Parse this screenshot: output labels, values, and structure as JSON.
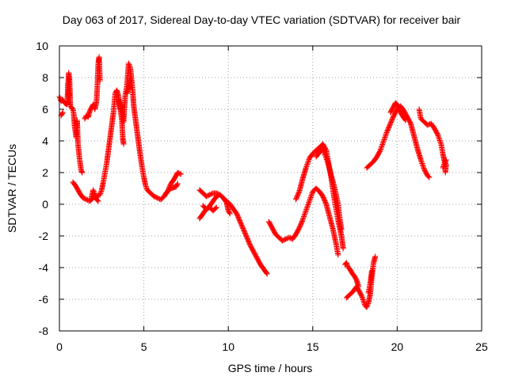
{
  "chart_data": {
    "type": "scatter",
    "title": "Day 063 of 2017, Sidereal Day-to-day VTEC variation (SDTVAR) for receiver bair",
    "xlabel": "GPS time / hours",
    "ylabel": "SDTVAR / TECUs",
    "xlim": [
      0,
      25
    ],
    "ylim": [
      -8,
      10
    ],
    "xticks": [
      0,
      5,
      10,
      15,
      20,
      25
    ],
    "yticks": [
      -8,
      -6,
      -4,
      -2,
      0,
      2,
      4,
      6,
      8,
      10
    ],
    "xtick_labels": [
      "0",
      "5",
      "10",
      "15",
      "20",
      "25"
    ],
    "ytick_labels": [
      "-8",
      "-6",
      "-4",
      "-2",
      "0",
      "2",
      "4",
      "6",
      "8",
      "10"
    ],
    "grid": true,
    "marker": "+",
    "series": [
      {
        "name": "SDTVAR",
        "color": "#ff0000",
        "segments": [
          [
            [
              0.0,
              6.8
            ],
            [
              0.1,
              6.5
            ],
            [
              0.2,
              6.6
            ],
            [
              0.3,
              6.4
            ],
            [
              0.45,
              6.3
            ],
            [
              0.55,
              8.3
            ],
            [
              0.6,
              7.8
            ],
            [
              0.65,
              6.2
            ],
            [
              0.8,
              6.0
            ],
            [
              0.85,
              5.7
            ],
            [
              0.9,
              4.9
            ],
            [
              1.0,
              4.2
            ],
            [
              1.05,
              5.3
            ],
            [
              1.1,
              3.8
            ],
            [
              1.2,
              2.8
            ],
            [
              1.3,
              2.1
            ],
            [
              1.35,
              2.0
            ]
          ],
          [
            [
              0.1,
              5.6
            ],
            [
              0.2,
              5.8
            ]
          ],
          [
            [
              0.5,
              7.6
            ],
            [
              0.55,
              6.8
            ],
            [
              0.6,
              7.0
            ]
          ],
          [
            [
              0.8,
              1.4
            ],
            [
              1.0,
              1.1
            ],
            [
              1.2,
              0.7
            ],
            [
              1.4,
              0.4
            ],
            [
              1.6,
              0.3
            ],
            [
              1.8,
              0.2
            ],
            [
              2.0,
              0.4
            ],
            [
              2.2,
              0.5
            ],
            [
              2.4,
              0.6
            ],
            [
              2.5,
              0.9
            ],
            [
              2.6,
              1.4
            ],
            [
              2.7,
              2.0
            ],
            [
              2.8,
              2.6
            ],
            [
              2.9,
              3.4
            ],
            [
              3.0,
              4.2
            ],
            [
              3.1,
              5.0
            ],
            [
              3.2,
              5.8
            ],
            [
              3.3,
              7.0
            ],
            [
              3.4,
              7.2
            ],
            [
              3.5,
              6.8
            ],
            [
              3.6,
              6.1
            ],
            [
              3.7,
              5.3
            ],
            [
              3.75,
              4.2
            ],
            [
              3.8,
              3.8
            ]
          ],
          [
            [
              1.5,
              5.4
            ],
            [
              1.6,
              5.6
            ],
            [
              1.7,
              5.5
            ],
            [
              1.8,
              5.9
            ],
            [
              1.9,
              6.1
            ],
            [
              2.0,
              6.3
            ],
            [
              2.1,
              6.0
            ],
            [
              2.2,
              6.5
            ],
            [
              2.25,
              7.5
            ],
            [
              2.3,
              8.9
            ],
            [
              2.35,
              9.3
            ],
            [
              2.4,
              7.8
            ]
          ],
          [
            [
              1.9,
              0.4
            ],
            [
              2.0,
              0.9
            ],
            [
              2.1,
              0.6
            ],
            [
              2.2,
              0.3
            ],
            [
              2.3,
              0.2
            ]
          ],
          [
            [
              3.5,
              6.6
            ],
            [
              3.6,
              6.0
            ],
            [
              3.7,
              6.3
            ],
            [
              3.8,
              5.2
            ],
            [
              3.9,
              6.9
            ],
            [
              4.0,
              7.5
            ],
            [
              4.1,
              8.9
            ],
            [
              4.2,
              8.6
            ],
            [
              4.3,
              7.6
            ],
            [
              4.35,
              7.0
            ],
            [
              4.4,
              6.2
            ],
            [
              4.5,
              5.4
            ],
            [
              4.6,
              4.6
            ],
            [
              4.7,
              3.8
            ],
            [
              4.8,
              3.0
            ],
            [
              4.9,
              2.3
            ],
            [
              5.0,
              1.7
            ],
            [
              5.1,
              1.2
            ],
            [
              5.2,
              0.9
            ],
            [
              5.4,
              0.7
            ],
            [
              5.6,
              0.5
            ],
            [
              5.8,
              0.4
            ],
            [
              6.0,
              0.3
            ],
            [
              6.2,
              0.5
            ],
            [
              6.4,
              0.8
            ],
            [
              6.6,
              1.3
            ],
            [
              6.8,
              1.6
            ],
            [
              7.0,
              2.0
            ],
            [
              7.2,
              1.9
            ]
          ],
          [
            [
              4.0,
              7.0
            ],
            [
              4.1,
              7.4
            ],
            [
              4.2,
              7.9
            ],
            [
              4.3,
              7.3
            ]
          ],
          [
            [
              6.3,
              0.7
            ],
            [
              6.6,
              1.0
            ],
            [
              6.9,
              1.1
            ],
            [
              7.0,
              1.3
            ]
          ],
          [
            [
              8.3,
              -0.9
            ],
            [
              8.5,
              -0.6
            ],
            [
              8.7,
              -0.3
            ],
            [
              8.9,
              -0.1
            ],
            [
              9.1,
              0.2
            ],
            [
              9.3,
              0.5
            ],
            [
              9.5,
              0.6
            ],
            [
              9.7,
              0.4
            ],
            [
              9.9,
              0.2
            ],
            [
              10.1,
              0.0
            ],
            [
              10.3,
              -0.3
            ],
            [
              10.5,
              -0.6
            ],
            [
              10.7,
              -1.1
            ],
            [
              10.9,
              -1.6
            ],
            [
              11.1,
              -2.1
            ],
            [
              11.3,
              -2.6
            ],
            [
              11.5,
              -3.0
            ],
            [
              11.7,
              -3.4
            ],
            [
              11.9,
              -3.8
            ],
            [
              12.1,
              -4.1
            ],
            [
              12.3,
              -4.4
            ]
          ],
          [
            [
              8.3,
              0.9
            ],
            [
              8.5,
              0.7
            ],
            [
              8.7,
              0.5
            ],
            [
              8.9,
              0.6
            ],
            [
              9.1,
              0.7
            ],
            [
              9.3,
              0.7
            ],
            [
              9.5,
              0.6
            ],
            [
              9.7,
              0.4
            ],
            [
              9.9,
              0.1
            ],
            [
              10.0,
              -0.4
            ],
            [
              10.1,
              -0.6
            ]
          ],
          [
            [
              8.5,
              -0.1
            ],
            [
              8.7,
              -0.3
            ],
            [
              8.9,
              -0.2
            ],
            [
              9.1,
              -0.4
            ],
            [
              9.3,
              -0.2
            ]
          ],
          [
            [
              12.4,
              -1.1
            ],
            [
              12.6,
              -1.5
            ],
            [
              12.8,
              -1.9
            ],
            [
              13.0,
              -2.1
            ],
            [
              13.2,
              -2.3
            ],
            [
              13.4,
              -2.2
            ],
            [
              13.6,
              -2.1
            ],
            [
              13.8,
              -2.2
            ],
            [
              14.0,
              -1.9
            ],
            [
              14.2,
              -1.5
            ],
            [
              14.4,
              -1.0
            ],
            [
              14.6,
              -0.4
            ],
            [
              14.8,
              0.2
            ],
            [
              15.0,
              0.8
            ],
            [
              15.2,
              1.0
            ],
            [
              15.4,
              0.8
            ],
            [
              15.6,
              0.5
            ],
            [
              15.8,
              0.0
            ],
            [
              16.0,
              -0.8
            ],
            [
              16.2,
              -1.6
            ],
            [
              16.4,
              -2.6
            ],
            [
              16.5,
              -3.2
            ]
          ],
          [
            [
              14.0,
              0.3
            ],
            [
              14.2,
              0.8
            ],
            [
              14.4,
              1.6
            ],
            [
              14.6,
              2.3
            ],
            [
              14.8,
              2.9
            ],
            [
              15.0,
              3.2
            ],
            [
              15.2,
              3.4
            ],
            [
              15.4,
              3.6
            ],
            [
              15.5,
              3.7
            ],
            [
              15.6,
              3.8
            ],
            [
              15.8,
              3.4
            ],
            [
              15.9,
              2.8
            ],
            [
              16.0,
              2.2
            ],
            [
              16.1,
              1.6
            ],
            [
              16.2,
              0.9
            ],
            [
              16.3,
              0.2
            ],
            [
              16.4,
              -0.4
            ],
            [
              16.5,
              -1.0
            ],
            [
              16.6,
              -1.5
            ],
            [
              16.7,
              -2.0
            ],
            [
              16.8,
              -2.8
            ]
          ],
          [
            [
              15.2,
              3.0
            ],
            [
              15.4,
              3.3
            ],
            [
              15.6,
              3.6
            ],
            [
              15.7,
              3.2
            ],
            [
              15.9,
              2.6
            ],
            [
              16.1,
              1.8
            ],
            [
              16.3,
              1.0
            ],
            [
              16.5,
              0.0
            ],
            [
              16.6,
              -0.9
            ],
            [
              16.7,
              -1.6
            ]
          ],
          [
            [
              16.9,
              -3.8
            ],
            [
              17.0,
              -3.7
            ],
            [
              17.1,
              -4.0
            ],
            [
              17.2,
              -4.1
            ],
            [
              17.3,
              -4.3
            ],
            [
              17.5,
              -4.6
            ],
            [
              17.6,
              -4.8
            ],
            [
              17.7,
              -5.2
            ]
          ],
          [
            [
              17.0,
              -5.9
            ],
            [
              17.2,
              -5.7
            ],
            [
              17.4,
              -5.5
            ],
            [
              17.6,
              -5.2
            ],
            [
              17.7,
              -5.4
            ],
            [
              17.8,
              -5.6
            ],
            [
              17.9,
              -5.8
            ],
            [
              18.0,
              -6.1
            ],
            [
              18.1,
              -6.4
            ],
            [
              18.2,
              -6.5
            ],
            [
              18.3,
              -6.2
            ],
            [
              18.4,
              -5.7
            ],
            [
              18.5,
              -4.6
            ],
            [
              18.6,
              -3.7
            ],
            [
              18.7,
              -3.3
            ]
          ],
          [
            [
              18.3,
              -5.6
            ],
            [
              18.4,
              -5.0
            ],
            [
              18.5,
              -4.2
            ]
          ],
          [
            [
              18.2,
              2.3
            ],
            [
              18.4,
              2.5
            ],
            [
              18.6,
              2.7
            ],
            [
              18.8,
              3.0
            ],
            [
              19.0,
              3.4
            ],
            [
              19.2,
              4.0
            ],
            [
              19.4,
              4.6
            ],
            [
              19.6,
              5.1
            ],
            [
              19.8,
              5.6
            ],
            [
              20.0,
              6.0
            ],
            [
              20.2,
              6.2
            ],
            [
              20.4,
              5.9
            ],
            [
              20.6,
              5.5
            ],
            [
              20.8,
              5.1
            ],
            [
              21.0,
              4.3
            ],
            [
              21.2,
              3.5
            ],
            [
              21.4,
              2.8
            ],
            [
              21.6,
              2.2
            ],
            [
              21.8,
              1.8
            ],
            [
              21.9,
              1.7
            ]
          ],
          [
            [
              19.6,
              5.8
            ],
            [
              19.8,
              6.2
            ],
            [
              19.9,
              6.4
            ],
            [
              20.0,
              6.3
            ],
            [
              20.1,
              6.0
            ],
            [
              20.3,
              5.6
            ],
            [
              20.5,
              5.3
            ]
          ],
          [
            [
              21.3,
              6.0
            ],
            [
              21.4,
              5.4
            ],
            [
              21.6,
              5.2
            ],
            [
              21.8,
              5.0
            ],
            [
              22.0,
              5.1
            ],
            [
              22.2,
              4.8
            ],
            [
              22.4,
              4.4
            ],
            [
              22.6,
              3.8
            ],
            [
              22.7,
              3.2
            ],
            [
              22.8,
              2.7
            ],
            [
              22.9,
              2.5
            ],
            [
              22.85,
              2.0
            ]
          ],
          [
            [
              22.7,
              2.3
            ],
            [
              22.8,
              2.6
            ],
            [
              22.9,
              2.8
            ]
          ]
        ]
      }
    ]
  }
}
